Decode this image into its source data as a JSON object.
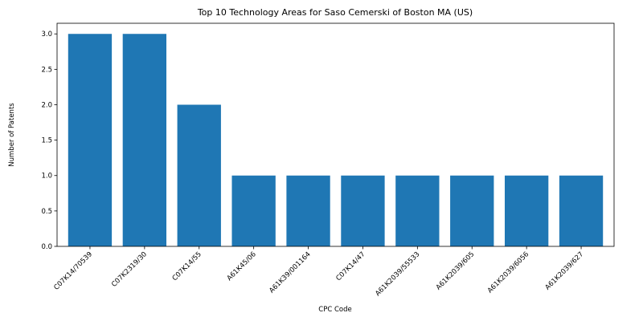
{
  "chart_data": {
    "type": "bar",
    "title": "Top 10 Technology Areas for Saso Cemerski of Boston MA (US)",
    "xlabel": "CPC Code",
    "ylabel": "Number of Patents",
    "categories": [
      "C07K14/70539",
      "C07K2319/30",
      "C07K14/55",
      "A61K45/06",
      "A61K39/001164",
      "C07K14/47",
      "A61K2039/55533",
      "A61K2039/605",
      "A61K2039/6056",
      "A61K2039/627"
    ],
    "values": [
      3,
      3,
      2,
      1,
      1,
      1,
      1,
      1,
      1,
      1
    ],
    "ylim": [
      0,
      3.15
    ],
    "yticks": [
      "0.0",
      "0.5",
      "1.0",
      "1.5",
      "2.0",
      "2.5",
      "3.0"
    ],
    "bar_color": "#1f77b4",
    "grid": false
  }
}
